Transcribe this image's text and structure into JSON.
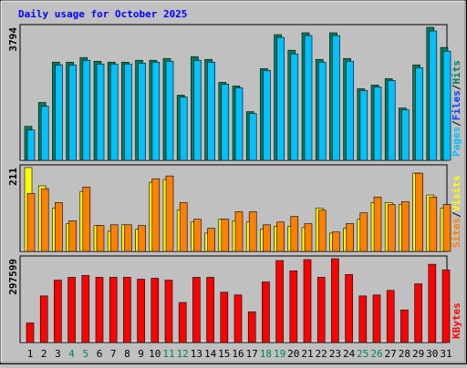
{
  "chart_data": [
    {
      "type": "bar",
      "title": "Daily usage for October 2025",
      "ylim": [
        0,
        3794
      ],
      "yticks": [
        3794
      ],
      "legend": [
        {
          "name": "Pages",
          "color": "#00c0ff"
        },
        {
          "name": "Files",
          "color": "#0040ff"
        },
        {
          "name": "Hits",
          "color": "#00805c"
        }
      ],
      "legend_separator": "/",
      "series": [
        {
          "name": "Hits",
          "color": "#00805c",
          "values": [
            968,
            1649,
            2800,
            2800,
            2931,
            2826,
            2800,
            2800,
            2853,
            2853,
            2905,
            1858,
            2957,
            2879,
            2224,
            2120,
            1387,
            2617,
            3585,
            3140,
            3638,
            2879,
            3638,
            2905,
            2041,
            2146,
            2329,
            1492,
            2722,
            3794,
            3219
          ]
        },
        {
          "name": "Files",
          "color": "#00c0ff",
          "values": [
            864,
            1544,
            2722,
            2722,
            2853,
            2748,
            2748,
            2748,
            2774,
            2800,
            2826,
            1806,
            2853,
            2800,
            2172,
            2067,
            1335,
            2565,
            3507,
            3036,
            3559,
            2800,
            3559,
            2826,
            1989,
            2094,
            2277,
            1439,
            2643,
            3690,
            3114
          ]
        }
      ]
    },
    {
      "type": "bar",
      "ylim": [
        0,
        211
      ],
      "yticks": [
        211
      ],
      "legend": [
        {
          "name": "Sites",
          "color": "#ff8000"
        },
        {
          "name": "Visits",
          "color": "#ffff00"
        }
      ],
      "legend_separator": "/",
      "series": [
        {
          "name": "Visits",
          "color": "#ffff00",
          "values": [
            211,
            165,
            109,
            70,
            151,
            65,
            51,
            67,
            56,
            174,
            181,
            104,
            74,
            46,
            81,
            77,
            74,
            56,
            63,
            63,
            60,
            109,
            46,
            58,
            81,
            123,
            123,
            118,
            197,
            142,
            109
          ]
        },
        {
          "name": "Sites",
          "color": "#ff8000",
          "values": [
            146,
            158,
            123,
            77,
            162,
            65,
            67,
            67,
            65,
            183,
            190,
            123,
            81,
            58,
            81,
            100,
            100,
            67,
            74,
            88,
            70,
            104,
            49,
            70,
            97,
            137,
            118,
            125,
            197,
            137,
            118
          ]
        }
      ]
    },
    {
      "type": "bar",
      "ylim": [
        0,
        297599
      ],
      "yticks": [
        297599
      ],
      "legend": [
        {
          "name": "KBytes",
          "color": "#ff0000"
        }
      ],
      "series": [
        {
          "name": "KBytes",
          "color": "#ff0000",
          "values": [
            69447,
            165350,
            221569,
            231490,
            238104,
            231490,
            231490,
            231490,
            224876,
            228183,
            221569,
            142201,
            231490,
            231490,
            178578,
            168657,
            109131,
            214955,
            291016,
            254639,
            294323,
            231490,
            297599,
            241411,
            165350,
            168657,
            185193,
            115745,
            208341,
            277788,
            257946
          ]
        }
      ],
      "categories": [
        "1",
        "2",
        "3",
        "4",
        "5",
        "6",
        "7",
        "8",
        "9",
        "10",
        "11",
        "12",
        "13",
        "14",
        "15",
        "16",
        "17",
        "18",
        "19",
        "20",
        "21",
        "22",
        "23",
        "24",
        "25",
        "26",
        "27",
        "28",
        "29",
        "30",
        "31"
      ],
      "category_colors": [
        "#000000",
        "#000000",
        "#000000",
        "#00805c",
        "#00805c",
        "#000000",
        "#000000",
        "#000000",
        "#000000",
        "#000000",
        "#00805c",
        "#00805c",
        "#000000",
        "#000000",
        "#000000",
        "#000000",
        "#000000",
        "#00805c",
        "#00805c",
        "#000000",
        "#000000",
        "#000000",
        "#000000",
        "#000000",
        "#00805c",
        "#00805c",
        "#000000",
        "#000000",
        "#000000",
        "#000000",
        "#000000"
      ]
    }
  ]
}
